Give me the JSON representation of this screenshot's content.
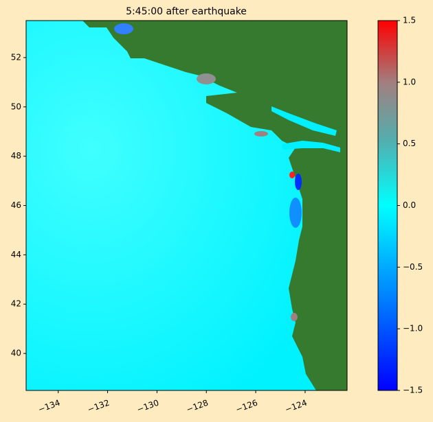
{
  "chart_data": {
    "type": "heatmap",
    "title": "5:45:00 after earthquake",
    "xlim": [
      -135.3,
      -122.3
    ],
    "ylim": [
      38.5,
      53.5
    ],
    "xticks": [
      {
        "value": -134,
        "label": "−134"
      },
      {
        "value": -132,
        "label": "−132"
      },
      {
        "value": -130,
        "label": "−130"
      },
      {
        "value": -128,
        "label": "−128"
      },
      {
        "value": -126,
        "label": "−126"
      },
      {
        "value": -124,
        "label": "−124"
      }
    ],
    "yticks": [
      40,
      42,
      44,
      46,
      48,
      50,
      52
    ],
    "colorbar": {
      "lim": [
        -1.5,
        1.5
      ],
      "ticks": [
        {
          "value": -1.5,
          "label": "−1.5"
        },
        {
          "value": -1.0,
          "label": "−1.0"
        },
        {
          "value": -0.5,
          "label": "−0.5"
        },
        {
          "value": 0.0,
          "label": "0.0"
        },
        {
          "value": 0.5,
          "label": "0.5"
        },
        {
          "value": 1.0,
          "label": "1.0"
        },
        {
          "value": 1.5,
          "label": "1.5"
        }
      ]
    }
  }
}
